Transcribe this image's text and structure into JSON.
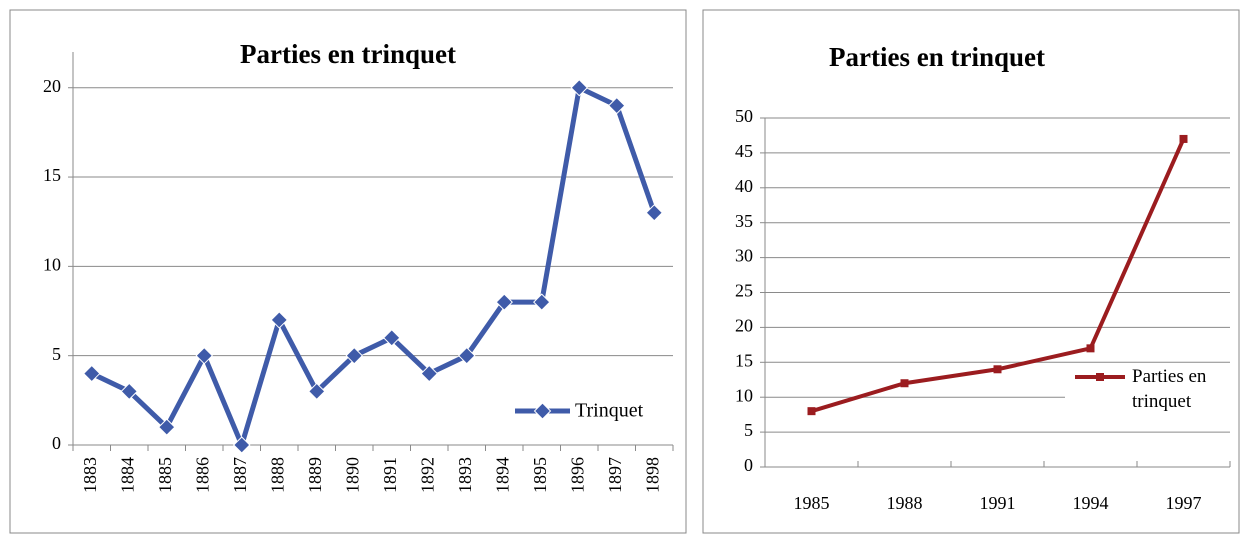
{
  "chart_data": [
    {
      "type": "line",
      "title": "Parties en trinquet",
      "categories": [
        "1883",
        "1884",
        "1885",
        "1886",
        "1887",
        "1888",
        "1889",
        "1890",
        "1891",
        "1892",
        "1893",
        "1894",
        "1895",
        "1896",
        "1897",
        "1898"
      ],
      "series": [
        {
          "name": "Trinquet",
          "color": "#3f5ba9",
          "values": [
            4,
            3,
            1,
            5,
            0,
            7,
            3,
            5,
            6,
            4,
            5,
            8,
            8,
            20,
            19,
            13
          ]
        }
      ],
      "ylim": [
        0,
        22
      ],
      "yticks": [
        0,
        5,
        10,
        15,
        20
      ],
      "grid": true,
      "marker": "diamond",
      "legend": "lower right"
    },
    {
      "type": "line",
      "title": "Parties en trinquet",
      "categories": [
        "1985",
        "1988",
        "1991",
        "1994",
        "1997"
      ],
      "series": [
        {
          "name": "Parties en trinquet",
          "color": "#9b1c1f",
          "values": [
            8,
            12,
            14,
            17,
            47
          ]
        }
      ],
      "ylim": [
        0,
        50
      ],
      "yticks": [
        0,
        5,
        10,
        15,
        20,
        25,
        30,
        35,
        40,
        45,
        50
      ],
      "grid": true,
      "marker": "square",
      "legend": "right"
    }
  ]
}
